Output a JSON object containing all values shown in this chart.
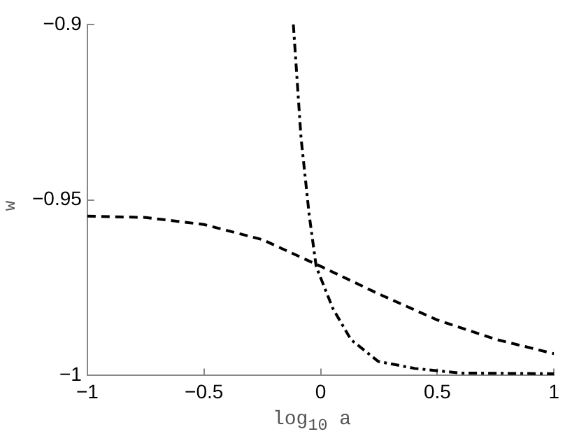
{
  "chart_data": {
    "type": "line",
    "xlabel": "log$_{10}$ a",
    "ylabel": "w",
    "xlim": [
      -1,
      1
    ],
    "ylim": [
      -1,
      -0.9
    ],
    "xticks": [
      {
        "value": -1,
        "label": "−1"
      },
      {
        "value": -0.5,
        "label": "−0.5"
      },
      0,
      0.5,
      1
    ],
    "yticks": [
      {
        "value": -1,
        "label": "−1"
      },
      {
        "value": -0.95,
        "label": "−0.95"
      },
      {
        "value": -0.9,
        "label": "−0.9"
      }
    ],
    "grid": false,
    "legend": false,
    "marker": "none",
    "series": [
      {
        "color": "#000000",
        "line_style": "dashed",
        "x": [
          -1,
          -0.75,
          -0.5,
          -0.25,
          0,
          0.25,
          0.5,
          0.75,
          1
        ],
        "values": [
          -0.9546,
          -0.955,
          -0.957,
          -0.9613,
          -0.9689,
          -0.9768,
          -0.9842,
          -0.9897,
          -0.9938
        ]
      },
      {
        "color": "#000000",
        "line_style": "dashdot",
        "x": [
          -0.117,
          -0.084,
          -0.049,
          -0.019,
          0.053,
          0.13,
          0.247,
          0.404,
          0.6,
          1
        ],
        "values": [
          -0.9,
          -0.9323,
          -0.9543,
          -0.969,
          -0.981,
          -0.9898,
          -0.996,
          -0.998,
          -0.9993,
          -0.9995
        ]
      }
    ]
  }
}
